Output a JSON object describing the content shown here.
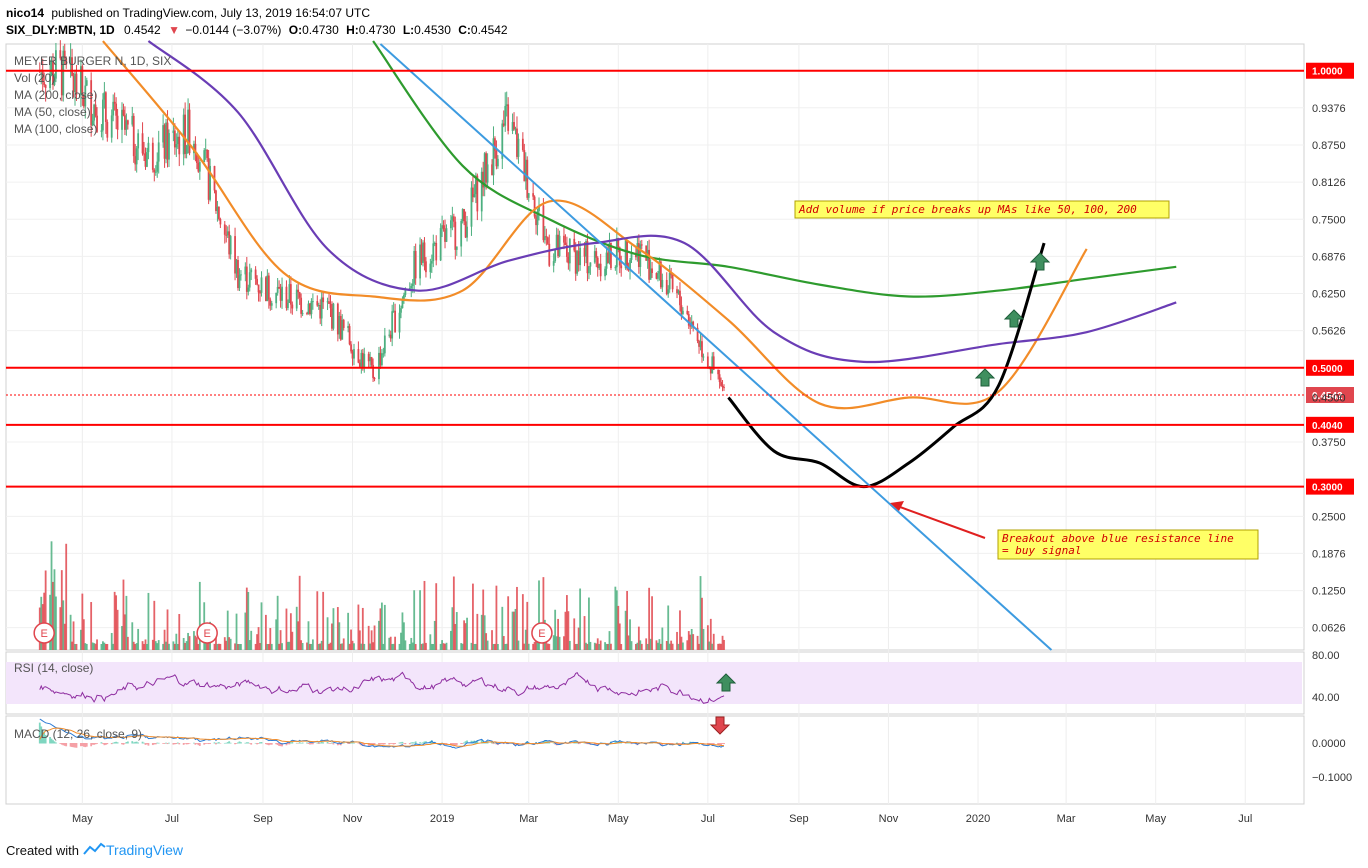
{
  "header": {
    "publisher": "nico14",
    "published_text": "published on TradingView.com, July 13, 2019 16:54:07 UTC",
    "symbol": "SIX_DLY:MBTN, 1D",
    "last": "0.4542",
    "change": "−0.0144 (−3.07%)",
    "o_label": "O:",
    "o": "0.4730",
    "h_label": "H:",
    "h": "0.4730",
    "l_label": "L:",
    "l": "0.4530",
    "c_label": "C:",
    "c": "0.4542"
  },
  "legend": {
    "name": "MEYER BURGER N, 1D, SIX",
    "items": [
      "Vol (20)",
      "MA (200, close)",
      "MA (50, close)",
      "MA (100, close)"
    ]
  },
  "panes": {
    "rsi_label": "RSI (14, close)",
    "macd_label": "MACD (12, 26, close, 9)"
  },
  "annotations": {
    "note1": "Add volume if price breaks up MAs like 50, 100, 200",
    "note2_line1": "Breakout above blue resistance line",
    "note2_line2": "= buy signal",
    "earnings_marker": "E"
  },
  "footer": {
    "created_with": "Created with",
    "brand": "TradingView"
  },
  "colors": {
    "candle_up": "#4caf7f",
    "candle_down": "#e0464e",
    "ma200": "#2e9b2e",
    "ma50": "#f28c28",
    "ma100": "#6a3db5",
    "resistance": "#3d9be0",
    "level": "#ff0000",
    "forecast_price": "#000000",
    "rsi_band": "#f3e5fb",
    "rsi_line": "#8e2da0",
    "macd_line": "#2b7bd4",
    "signal_line": "#f28c28",
    "note_bg": "#ffff66"
  },
  "chart_data": [
    {
      "type": "candlestick",
      "series": [
        {
          "name": "MEYER BURGER N, 1D, SIX",
          "kind": "candles",
          "x": [
            "2018-04",
            "2018-05",
            "2018-06",
            "2018-07",
            "2018-08",
            "2018-09",
            "2018-10",
            "2018-11",
            "2018-12",
            "2019-01",
            "2019-02",
            "2019-03",
            "2019-04",
            "2019-05",
            "2019-06",
            "2019-07"
          ],
          "close": [
            1.0,
            0.93,
            0.86,
            0.9,
            0.66,
            0.62,
            0.6,
            0.49,
            0.68,
            0.74,
            0.92,
            0.7,
            0.68,
            0.7,
            0.6,
            0.4542
          ]
        },
        {
          "name": "MA (200, close)",
          "kind": "line",
          "x": [
            "2018-11",
            "2019-01",
            "2019-03",
            "2019-05",
            "2019-07",
            "2019-09",
            "2019-11",
            "2020-01",
            "2020-03",
            "2020-05"
          ],
          "y": [
            1.05,
            0.84,
            0.75,
            0.69,
            0.67,
            0.64,
            0.62,
            0.63,
            0.65,
            0.67
          ]
        },
        {
          "name": "MA (50, close)",
          "kind": "line",
          "x": [
            "2018-05",
            "2018-07",
            "2018-09",
            "2018-11",
            "2019-01",
            "2019-03",
            "2019-05",
            "2019-07",
            "2019-09",
            "2019-11",
            "2020-01",
            "2020-03"
          ],
          "y": [
            1.05,
            0.87,
            0.66,
            0.62,
            0.63,
            0.78,
            0.7,
            0.58,
            0.44,
            0.45,
            0.46,
            0.7
          ]
        },
        {
          "name": "MA (100, close)",
          "kind": "line",
          "x": [
            "2018-06",
            "2018-08",
            "2018-10",
            "2018-12",
            "2019-02",
            "2019-04",
            "2019-06",
            "2019-08",
            "2019-10",
            "2020-01",
            "2020-03",
            "2020-05"
          ],
          "y": [
            1.05,
            0.93,
            0.7,
            0.63,
            0.68,
            0.71,
            0.71,
            0.56,
            0.51,
            0.54,
            0.56,
            0.61
          ]
        },
        {
          "name": "forecast price path",
          "kind": "line",
          "x": [
            "2019-07",
            "2019-08",
            "2019-09",
            "2019-10",
            "2019-11",
            "2019-12",
            "2020-01",
            "2020-02"
          ],
          "y": [
            0.45,
            0.36,
            0.34,
            0.3,
            0.34,
            0.4,
            0.47,
            0.71
          ]
        }
      ],
      "price_levels": [
        1.0,
        0.5,
        0.404,
        0.3
      ],
      "last_price": 0.4542,
      "y_ticks": [
        "1.0000",
        "0.9376",
        "0.8750",
        "0.8126",
        "0.7500",
        "0.6876",
        "0.6250",
        "0.5626",
        "0.5000",
        "0.4542",
        "0.4500",
        "0.4040",
        "0.3750",
        "0.3000",
        "0.2500",
        "0.1876",
        "0.1250",
        "0.0626"
      ],
      "x_ticks": [
        "May",
        "Jul",
        "Sep",
        "Nov",
        "2019",
        "Mar",
        "May",
        "Jul",
        "Sep",
        "Nov",
        "2020",
        "Mar",
        "May",
        "Jul"
      ]
    },
    {
      "type": "line",
      "series": [
        {
          "name": "RSI (14, close)",
          "y_range": [
            30,
            70
          ]
        }
      ],
      "y_ticks": [
        "80.00",
        "40.00"
      ]
    },
    {
      "type": "bar",
      "series": [
        {
          "name": "MACD (12, 26, close, 9)"
        }
      ],
      "y_ticks": [
        "0.0000",
        "−0.1000"
      ]
    }
  ]
}
